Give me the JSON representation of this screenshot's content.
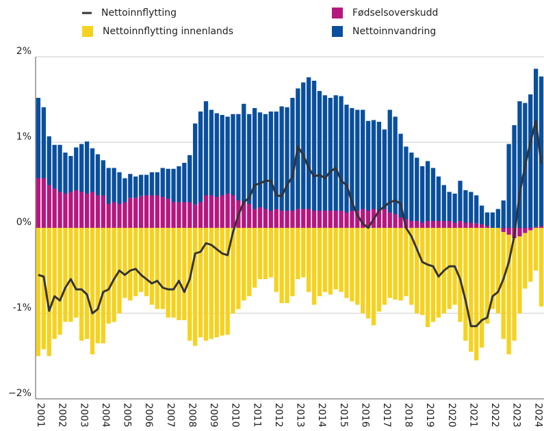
{
  "chart_data": {
    "type": "bar",
    "stacked": true,
    "categories": [
      "2001",
      null,
      null,
      null,
      "2002",
      null,
      null,
      null,
      "2003",
      null,
      null,
      null,
      "2004",
      null,
      null,
      null,
      "2005",
      null,
      null,
      null,
      "2006",
      null,
      null,
      null,
      "2007",
      null,
      null,
      null,
      "2008",
      null,
      null,
      null,
      "2009",
      null,
      null,
      null,
      "2010",
      null,
      null,
      null,
      "2011",
      null,
      null,
      null,
      "2012",
      null,
      null,
      null,
      "2013",
      null,
      null,
      null,
      "2014",
      null,
      null,
      null,
      "2015",
      null,
      null,
      null,
      "2016",
      null,
      null,
      null,
      "2017",
      null,
      null,
      null,
      "2018",
      null,
      null,
      null,
      "2019",
      null,
      null,
      null,
      "2020",
      null,
      null,
      null,
      "2021",
      null,
      null,
      null,
      "2022",
      null,
      null,
      null,
      "2023",
      null,
      null,
      null,
      "2024",
      null
    ],
    "series": [
      {
        "name": "Nettoinnflytting",
        "type": "line",
        "color": "#333333",
        "values": [
          -0.55,
          -0.57,
          -0.97,
          -0.8,
          -0.85,
          -0.7,
          -0.6,
          -0.72,
          -0.72,
          -0.78,
          -1.0,
          -0.95,
          -0.75,
          -0.72,
          -0.6,
          -0.5,
          -0.55,
          -0.5,
          -0.48,
          -0.55,
          -0.6,
          -0.65,
          -0.62,
          -0.7,
          -0.72,
          -0.72,
          -0.62,
          -0.75,
          -0.6,
          -0.3,
          -0.28,
          -0.18,
          -0.2,
          -0.25,
          -0.3,
          -0.32,
          -0.05,
          0.15,
          0.3,
          0.35,
          0.5,
          0.52,
          0.55,
          0.55,
          0.38,
          0.37,
          0.5,
          0.6,
          0.95,
          0.85,
          0.7,
          0.6,
          0.62,
          0.58,
          0.66,
          0.7,
          0.55,
          0.5,
          0.3,
          0.15,
          0.05,
          0.0,
          0.1,
          0.2,
          0.25,
          0.3,
          0.32,
          0.28,
          0.0,
          -0.1,
          -0.25,
          -0.4,
          -0.43,
          -0.45,
          -0.57,
          -0.5,
          -0.45,
          -0.45,
          -0.6,
          -0.85,
          -1.15,
          -1.15,
          -1.08,
          -1.05,
          -0.8,
          -0.75,
          -0.6,
          -0.4,
          -0.1,
          0.4,
          0.72,
          1.0,
          1.25,
          0.75
        ]
      },
      {
        "name": "Fødselsoverskudd",
        "color": "#b5177f",
        "values": [
          0.58,
          0.58,
          0.5,
          0.46,
          0.42,
          0.4,
          0.42,
          0.44,
          0.42,
          0.4,
          0.42,
          0.38,
          0.38,
          0.28,
          0.3,
          0.28,
          0.3,
          0.35,
          0.35,
          0.37,
          0.38,
          0.38,
          0.38,
          0.36,
          0.34,
          0.3,
          0.3,
          0.3,
          0.3,
          0.27,
          0.3,
          0.38,
          0.38,
          0.36,
          0.38,
          0.4,
          0.38,
          0.32,
          0.3,
          0.28,
          0.22,
          0.24,
          0.22,
          0.2,
          0.22,
          0.2,
          0.2,
          0.2,
          0.22,
          0.22,
          0.22,
          0.2,
          0.2,
          0.2,
          0.2,
          0.2,
          0.2,
          0.18,
          0.2,
          0.2,
          0.22,
          0.2,
          0.22,
          0.2,
          0.22,
          0.18,
          0.16,
          0.12,
          0.1,
          0.08,
          0.08,
          0.06,
          0.08,
          0.08,
          0.08,
          0.08,
          0.08,
          0.06,
          0.08,
          0.06,
          0.06,
          0.05,
          0.04,
          0.02,
          0.0,
          0.0,
          -0.05,
          -0.08,
          -0.12,
          -0.1,
          -0.06,
          -0.03,
          0.01,
          0.02
        ]
      },
      {
        "name": "Nettoinnflytting innenlands",
        "color": "#f5d21f",
        "values": [
          -1.5,
          -1.42,
          -1.5,
          -1.3,
          -1.25,
          -1.1,
          -1.1,
          -1.05,
          -1.32,
          -1.3,
          -1.48,
          -1.35,
          -1.35,
          -1.12,
          -1.1,
          -1.0,
          -0.82,
          -0.85,
          -0.8,
          -0.75,
          -0.8,
          -0.9,
          -0.95,
          -0.95,
          -1.05,
          -1.05,
          -1.08,
          -1.08,
          -1.32,
          -1.38,
          -1.28,
          -1.32,
          -1.3,
          -1.28,
          -1.26,
          -1.25,
          -1.0,
          -0.95,
          -0.85,
          -0.8,
          -0.7,
          -0.6,
          -0.6,
          -0.58,
          -0.75,
          -0.88,
          -0.88,
          -0.8,
          -0.6,
          -0.58,
          -0.75,
          -0.9,
          -0.8,
          -0.75,
          -0.78,
          -0.72,
          -0.75,
          -0.82,
          -0.86,
          -0.9,
          -1.0,
          -1.06,
          -1.14,
          -0.98,
          -0.9,
          -0.82,
          -0.84,
          -0.85,
          -0.8,
          -0.9,
          -1.0,
          -1.02,
          -1.16,
          -1.1,
          -1.05,
          -1.0,
          -0.95,
          -0.9,
          -1.1,
          -1.32,
          -1.45,
          -1.55,
          -1.4,
          -1.12,
          -0.95,
          -1.0,
          -1.25,
          -1.4,
          -1.2,
          -0.9,
          -0.65,
          -0.6,
          -0.5,
          -0.92
        ]
      },
      {
        "name": "Nettoinnvandring",
        "color": "#0a4f9e",
        "values": [
          0.94,
          0.83,
          0.57,
          0.51,
          0.55,
          0.48,
          0.42,
          0.5,
          0.56,
          0.61,
          0.51,
          0.48,
          0.41,
          0.42,
          0.4,
          0.37,
          0.28,
          0.28,
          0.25,
          0.25,
          0.24,
          0.27,
          0.27,
          0.34,
          0.35,
          0.39,
          0.42,
          0.46,
          0.55,
          0.95,
          1.06,
          1.1,
          1.0,
          0.98,
          0.94,
          0.9,
          0.95,
          1.01,
          1.15,
          1.05,
          1.18,
          1.11,
          1.11,
          1.16,
          1.14,
          1.22,
          1.21,
          1.32,
          1.41,
          1.48,
          1.54,
          1.52,
          1.4,
          1.35,
          1.32,
          1.35,
          1.34,
          1.26,
          1.2,
          1.18,
          1.16,
          1.05,
          1.04,
          1.04,
          0.93,
          1.2,
          1.14,
          0.98,
          0.85,
          0.8,
          0.74,
          0.66,
          0.7,
          0.62,
          0.52,
          0.42,
          0.34,
          0.34,
          0.47,
          0.38,
          0.36,
          0.33,
          0.22,
          0.16,
          0.18,
          0.22,
          0.32,
          0.98,
          1.2,
          1.48,
          1.46,
          1.56,
          1.85,
          1.75
        ]
      }
    ],
    "legend_order": [
      0,
      1,
      2,
      3
    ],
    "ylim": [
      -2,
      2
    ],
    "yticks": [
      {
        "value": -2,
        "label": "−2%"
      },
      {
        "value": -1,
        "label": "-1%"
      },
      {
        "value": 0,
        "label": "0%"
      },
      {
        "value": 1,
        "label": "1%"
      },
      {
        "value": 2,
        "label": "2%"
      }
    ],
    "grid": true
  }
}
